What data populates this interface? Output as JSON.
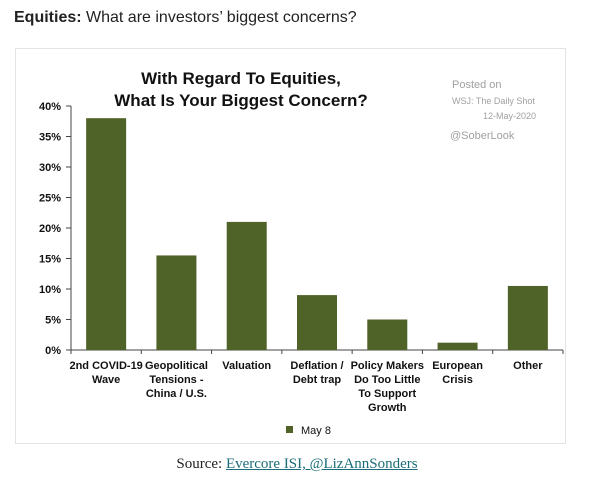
{
  "page": {
    "header_bold": "Equities:",
    "header_rest": " What are investors’ biggest concerns?",
    "source_prefix": "Source: ",
    "source_link": "Evercore ISI, @LizAnnSonders"
  },
  "watermark": {
    "posted_on": "Posted on",
    "outlet": "WSJ: The Daily Shot",
    "date": "12-May-2020",
    "handle": "@SoberLook"
  },
  "colors": {
    "bar": "#4f6228",
    "axis": "#444444",
    "watermark": "#a0a0a0",
    "link": "#1a6d78"
  },
  "chart_data": {
    "type": "bar",
    "title_line1": "With Regard To Equities,",
    "title_line2": "What Is Your Biggest Concern?",
    "categories": [
      [
        "2nd COVID-19",
        "Wave"
      ],
      [
        "Geopolitical",
        "Tensions -",
        "China / U.S."
      ],
      [
        "Valuation"
      ],
      [
        "Deflation /",
        "Debt trap"
      ],
      [
        "Policy Makers",
        "Do Too Little",
        "To Support",
        "Growth"
      ],
      [
        "European",
        "Crisis"
      ],
      [
        "Other"
      ]
    ],
    "series": [
      {
        "name": "May 8",
        "values": [
          38,
          15.5,
          21,
          9,
          5,
          1.2,
          10.5
        ]
      }
    ],
    "ylim": [
      0,
      40
    ],
    "yticks": [
      "0%",
      "5%",
      "10%",
      "15%",
      "20%",
      "25%",
      "30%",
      "35%",
      "40%"
    ],
    "ytick_values": [
      0,
      5,
      10,
      15,
      20,
      25,
      30,
      35,
      40
    ],
    "legend_position": "bottom-center",
    "grid": false
  }
}
